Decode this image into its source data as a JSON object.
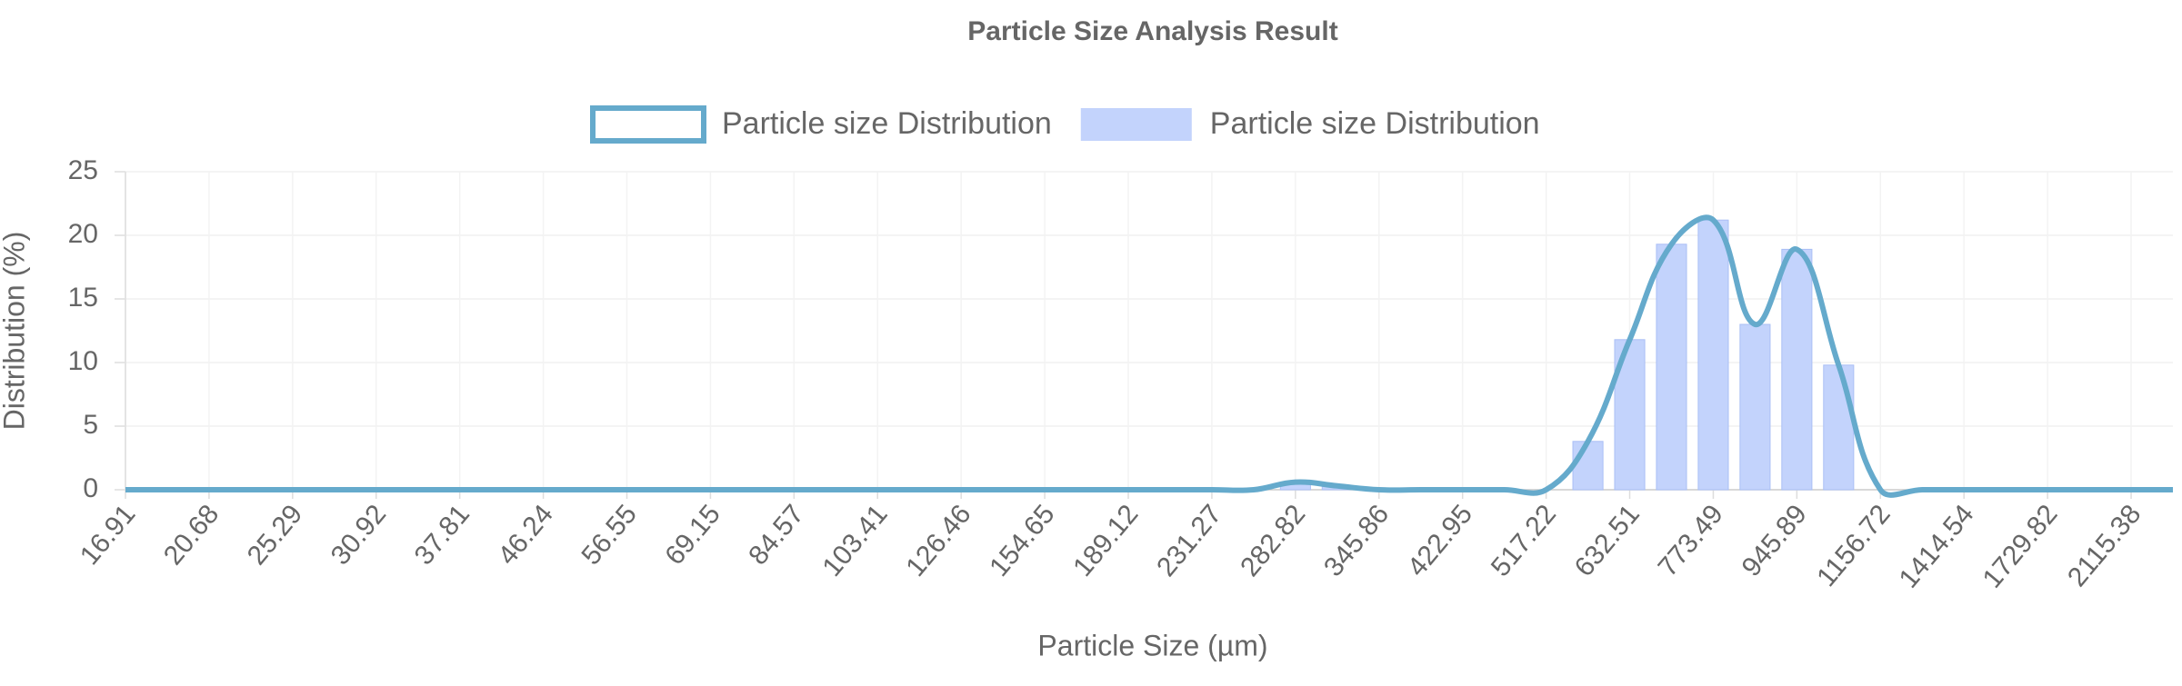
{
  "chart_data": {
    "type": "bar-line",
    "title": "Particle Size Analysis Result",
    "x_label": "Particle Size (µm)",
    "y_label": "Distribution (%)",
    "categories": [
      "16.91",
      null,
      "20.68",
      null,
      "25.29",
      null,
      "30.92",
      null,
      "37.81",
      null,
      "46.24",
      null,
      "56.55",
      null,
      "69.15",
      null,
      "84.57",
      null,
      "103.41",
      null,
      "126.46",
      null,
      "154.65",
      null,
      "189.12",
      null,
      "231.27",
      null,
      "282.82",
      null,
      "345.86",
      null,
      "422.95",
      null,
      "517.22",
      null,
      "632.51",
      null,
      "773.49",
      null,
      "945.89",
      null,
      "1156.72",
      null,
      "1414.54",
      null,
      "1729.82",
      null,
      "2115.38",
      null
    ],
    "series": [
      {
        "name": "Particle size Distribution",
        "kind": "line",
        "color": "#65aacc",
        "values": [
          0,
          0,
          0,
          0,
          0,
          0,
          0,
          0,
          0,
          0,
          0,
          0,
          0,
          0,
          0,
          0,
          0,
          0,
          0,
          0,
          0,
          0,
          0,
          0,
          0,
          0,
          0,
          0,
          0.6,
          0.3,
          0,
          0,
          0,
          0,
          0,
          3.8,
          11.8,
          19.3,
          21.2,
          13,
          18.9,
          9.8,
          0,
          0,
          0,
          0,
          0,
          0,
          0,
          0
        ]
      },
      {
        "name": "Particle size Distribution",
        "kind": "bar",
        "color": "#c3d3fc",
        "values": [
          0,
          0,
          0,
          0,
          0,
          0,
          0,
          0,
          0,
          0,
          0,
          0,
          0,
          0,
          0,
          0,
          0,
          0,
          0,
          0,
          0,
          0,
          0,
          0,
          0,
          0,
          0,
          0,
          0.6,
          0.3,
          0,
          0,
          0,
          0,
          0,
          3.8,
          11.8,
          19.3,
          21.2,
          13,
          18.9,
          9.8,
          0,
          0,
          0,
          0,
          0,
          0,
          0,
          0
        ]
      }
    ],
    "ylim": [
      0,
      25
    ],
    "yticks": [
      0,
      5,
      10,
      15,
      20,
      25
    ],
    "grid": true
  }
}
